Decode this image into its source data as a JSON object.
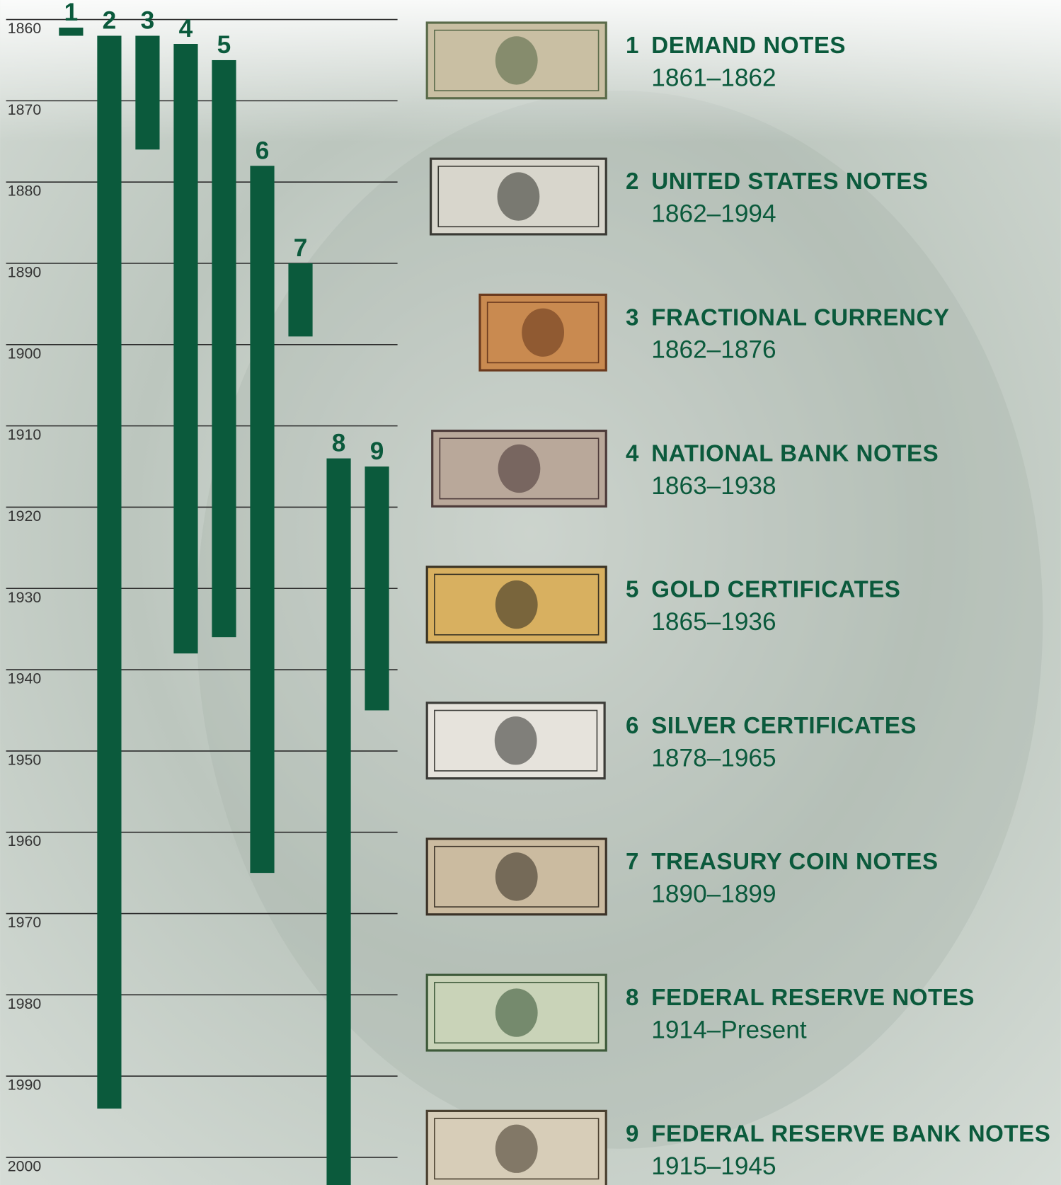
{
  "chart_data": {
    "type": "timeline",
    "categories": [
      "1",
      "2",
      "3",
      "4",
      "5",
      "6",
      "7",
      "8",
      "9"
    ],
    "names": [
      "DEMAND NOTES",
      "UNITED STATES NOTES",
      "FRACTIONAL CURRENCY",
      "NATIONAL BANK NOTES",
      "GOLD CERTIFICATES",
      "SILVER CERTIFICATES",
      "TREASURY COIN NOTES",
      "FEDERAL RESERVE NOTES",
      "FEDERAL RESERVE BANK NOTES"
    ],
    "starts": [
      1861,
      1862,
      1862,
      1863,
      1865,
      1878,
      1890,
      1914,
      1915
    ],
    "ends": [
      1862,
      1994,
      1876,
      1938,
      1936,
      1965,
      1899,
      null,
      1945
    ],
    "value_labels": [
      "1861–1862",
      "1862–1994",
      "1862–1876",
      "1863–1938",
      "1865–1936",
      "1878–1965",
      "1890–1899",
      "1914–Present",
      "1915–1945"
    ],
    "color": "#0b5a3c",
    "ylim": [
      2003.4,
      1857.6
    ],
    "yticks": [
      1860,
      1870,
      1880,
      1890,
      1900,
      1910,
      1920,
      1930,
      1940,
      1950,
      1960,
      1970,
      1980,
      1990,
      2000
    ],
    "grid": true
  }
}
